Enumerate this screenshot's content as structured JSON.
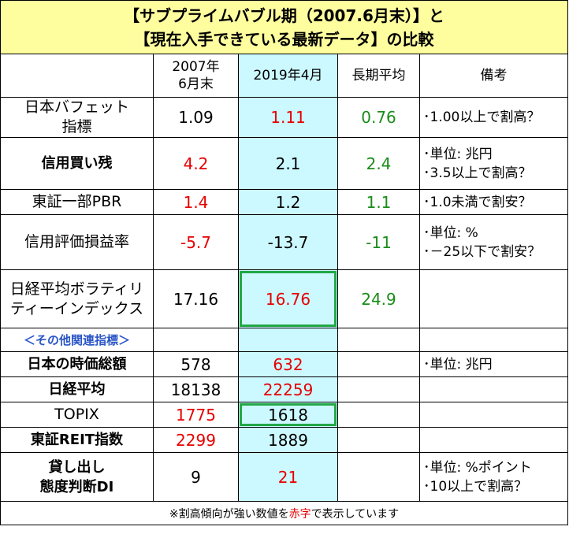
{
  "title": {
    "line1": "【サブプライムバブル期（2007.6月末）】と",
    "line2": "【現在入手できている最新データ】の比較"
  },
  "headers": {
    "col1_line1": "2007年",
    "col1_line2": "6月末",
    "col2": "2019年4月",
    "col3": "長期平均",
    "col4": "備考"
  },
  "rows": [
    {
      "label": [
        "日本バフェット",
        "指標"
      ],
      "v2007": "1.09",
      "v2019": "1.11",
      "avg": "0.76",
      "notes": [
        "･1.00以上で割高？"
      ]
    },
    {
      "label": [
        "信用買い残"
      ],
      "v2007": "4.2",
      "v2019": "2.1",
      "avg": "2.4",
      "notes": [
        "･単位: 兆円",
        "･3.5以上で割高？"
      ]
    },
    {
      "label": [
        "東証一部PBR"
      ],
      "v2007": "1.4",
      "v2019": "1.2",
      "avg": "1.1",
      "notes": [
        "･1.0未満で割安？"
      ]
    },
    {
      "label": [
        "信用評価損益率"
      ],
      "v2007": "-5.7",
      "v2019": "-13.7",
      "avg": "-11",
      "notes": [
        "･単位: %",
        "･－25以下で割安？"
      ]
    },
    {
      "label": [
        "日経平均ボラティリ",
        "ティーインデックス"
      ],
      "v2007": "17.16",
      "v2019": "16.76",
      "avg": "24.9",
      "notes": []
    }
  ],
  "subheader": "＜その他関連指標＞",
  "rows2": [
    {
      "label": [
        "日本の時価総額"
      ],
      "v2007": "578",
      "v2019": "632",
      "notes": [
        "･単位: 兆円"
      ]
    },
    {
      "label": [
        "日経平均"
      ],
      "v2007": "18138",
      "v2019": "22259",
      "notes": []
    },
    {
      "label": [
        "TOPIX"
      ],
      "v2007": "1775",
      "v2019": "1618",
      "notes": []
    },
    {
      "label": [
        "東証REIT指数"
      ],
      "v2007": "2299",
      "v2019": "1889",
      "notes": []
    },
    {
      "label": [
        "貸し出し",
        "態度判断DI"
      ],
      "v2007": "9",
      "v2019": "21",
      "notes": [
        "･単位: %ポイント",
        "･10以上で割高？"
      ]
    }
  ],
  "footer": {
    "before": "※割高傾向が強い数値を",
    "red_word": "赤字",
    "after": "で表示しています"
  },
  "colors": {
    "title_bg": "#fffe9f",
    "highlight_col": "#ccf9ff",
    "red": "#e60000",
    "green": "#1a8c1a",
    "box": "#22a845",
    "sub": "#2a55c6"
  }
}
